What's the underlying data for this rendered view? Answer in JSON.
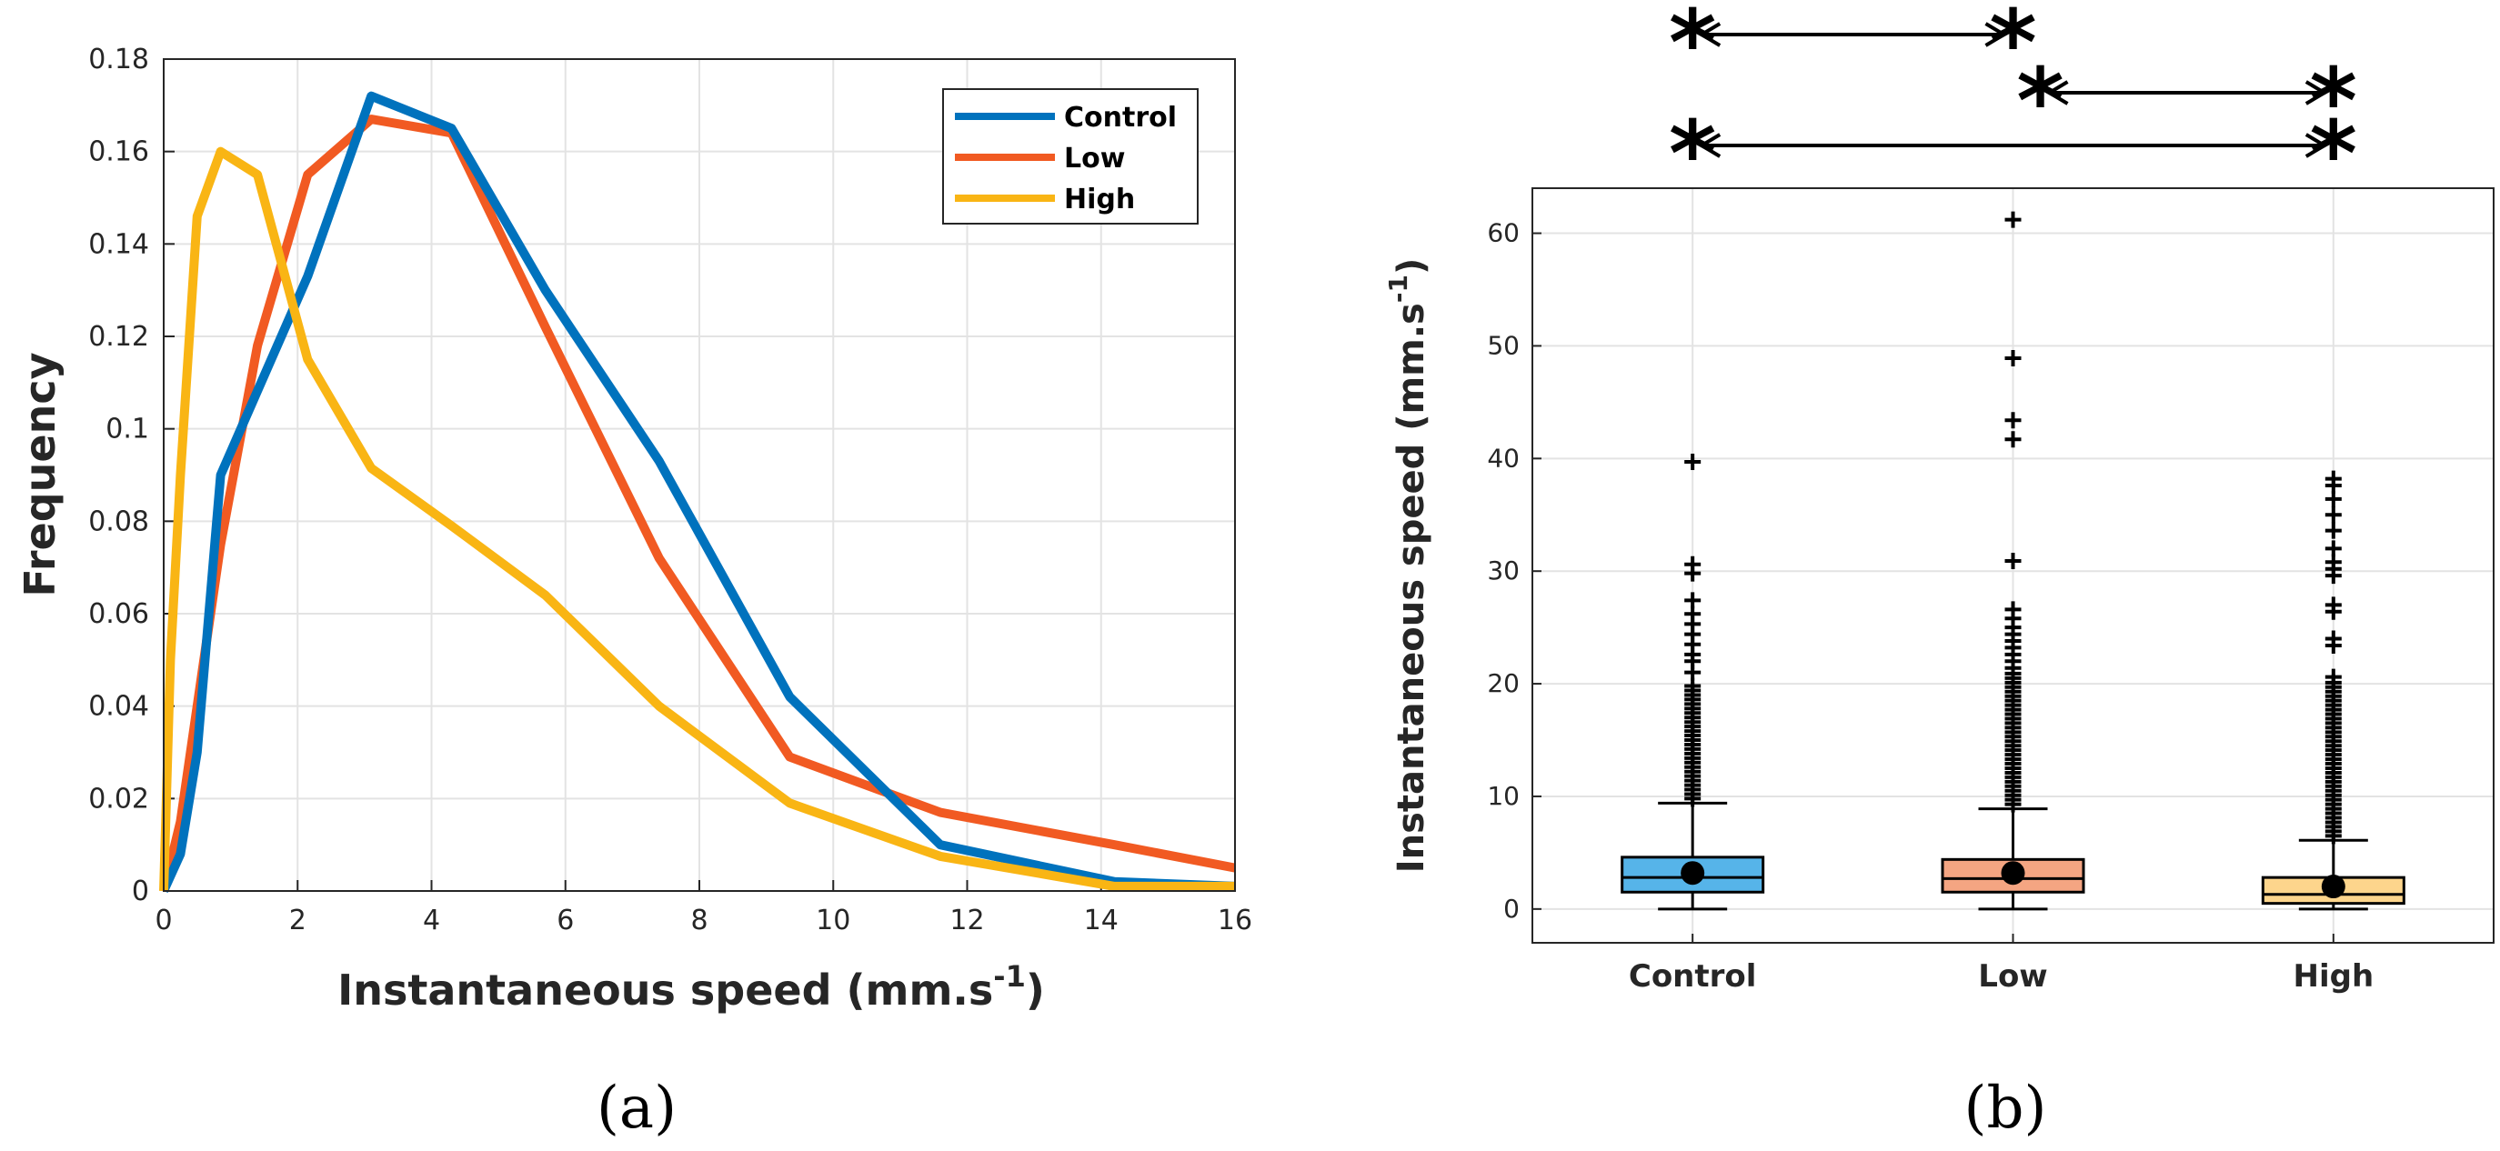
{
  "chart_data": [
    {
      "type": "line",
      "panel": "(a)",
      "xlabel": "Instantaneous speed (mm.s",
      "xlabel_sup": "-1",
      "xlabel_end": ")",
      "ylabel": "Frequency",
      "xlim": [
        0,
        16
      ],
      "ylim": [
        0,
        0.18
      ],
      "grid": true,
      "legend_position": "top-right",
      "x_ticks": [
        0,
        2,
        4,
        6,
        8,
        10,
        12,
        14,
        16
      ],
      "x_tick_labels": [
        "0",
        "2",
        "4",
        "6",
        "8",
        "10",
        "12",
        "14",
        "16"
      ],
      "y_ticks": [
        0,
        0.02,
        0.04,
        0.06,
        0.08,
        0.1,
        0.12,
        0.14,
        0.16,
        0.18
      ],
      "y_tick_labels": [
        "0",
        "0.02",
        "0.04",
        "0.06",
        "0.08",
        "0.1",
        "0.12",
        "0.14",
        "0.16",
        "0.18"
      ],
      "series": [
        {
          "name": "Control",
          "color": "#0072BD",
          "x": [
            0,
            0.25,
            0.5,
            0.85,
            2.15,
            3.1,
            4.3,
            5.7,
            7.4,
            9.35,
            11.6,
            14.2,
            16
          ],
          "y": [
            0,
            0.008,
            0.03,
            0.09,
            0.133,
            0.172,
            0.165,
            0.13,
            0.093,
            0.042,
            0.01,
            0.002,
            0.001
          ]
        },
        {
          "name": "Low",
          "color": "#F15A22",
          "x": [
            0,
            0.25,
            0.5,
            0.85,
            1.4,
            2.15,
            3.1,
            4.3,
            5.7,
            7.4,
            9.35,
            11.6,
            14.2,
            16
          ],
          "y": [
            0,
            0.015,
            0.04,
            0.075,
            0.118,
            0.155,
            0.167,
            0.164,
            0.122,
            0.072,
            0.029,
            0.017,
            0.01,
            0.005
          ]
        },
        {
          "name": "High",
          "color": "#F9B514",
          "x": [
            0,
            0.1,
            0.25,
            0.5,
            0.85,
            1.4,
            2.15,
            3.1,
            4.3,
            5.7,
            7.4,
            9.35,
            11.6,
            14.2,
            16
          ],
          "y": [
            0,
            0.05,
            0.09,
            0.146,
            0.16,
            0.155,
            0.115,
            0.0915,
            0.079,
            0.064,
            0.04,
            0.019,
            0.0075,
            0.001,
            0.001
          ]
        }
      ]
    },
    {
      "type": "boxplot",
      "panel": "(b)",
      "ylabel": "Instantaneous speed (mm.s",
      "ylabel_sup": "-1",
      "ylabel_end": ")",
      "ylim": [
        -3,
        64
      ],
      "grid": true,
      "categories": [
        "Control",
        "Low",
        "High"
      ],
      "y_ticks": [
        0,
        10,
        20,
        30,
        40,
        50,
        60
      ],
      "y_tick_labels": [
        "0",
        "10",
        "20",
        "30",
        "40",
        "50",
        "60"
      ],
      "mean_label": "●",
      "outlier_label": "+",
      "boxes": [
        {
          "name": "Control",
          "color": "#56B4E9",
          "whisker_low": 0,
          "q1": 1.5,
          "median": 2.8,
          "q3": 4.6,
          "whisker_high": 9.4,
          "mean": 3.2,
          "outliers": [
            9.8,
            10.2,
            10.6,
            11,
            11.4,
            11.8,
            12.2,
            12.6,
            13,
            13.4,
            13.8,
            14.2,
            14.6,
            15,
            15.4,
            15.8,
            16.2,
            16.6,
            17,
            17.4,
            17.8,
            18.2,
            18.6,
            19,
            19.4,
            19.8,
            21,
            22,
            22.6,
            23.5,
            24.4,
            25.3,
            26.2,
            27.4,
            29.8,
            30.6,
            39.7
          ]
        },
        {
          "name": "Low",
          "color": "#F4A582",
          "whisker_low": 0,
          "q1": 1.5,
          "median": 2.7,
          "q3": 4.4,
          "whisker_high": 8.9,
          "mean": 3.2,
          "outliers": [
            9.3,
            9.7,
            10.1,
            10.5,
            10.9,
            11.3,
            11.7,
            12.1,
            12.5,
            12.9,
            13.3,
            13.7,
            14.1,
            14.5,
            14.9,
            15.3,
            15.7,
            16.1,
            16.5,
            16.9,
            17.3,
            17.7,
            18.1,
            18.5,
            18.9,
            19.3,
            19.7,
            20.1,
            20.5,
            20.9,
            21.4,
            22,
            22.6,
            23.2,
            23.8,
            24.4,
            25,
            25.8,
            26.6,
            30.9,
            41.7,
            43.4,
            48.9,
            61.2
          ]
        },
        {
          "name": "High",
          "color": "#FDD58C",
          "whisker_low": 0,
          "q1": 0.5,
          "median": 1.3,
          "q3": 2.8,
          "whisker_high": 6.1,
          "mean": 2.0,
          "outliers": [
            6.5,
            6.9,
            7.3,
            7.7,
            8.1,
            8.5,
            8.9,
            9.3,
            9.7,
            10.1,
            10.5,
            10.9,
            11.3,
            11.7,
            12.1,
            12.5,
            12.9,
            13.3,
            13.7,
            14.1,
            14.5,
            14.9,
            15.3,
            15.7,
            16.1,
            16.5,
            16.9,
            17.3,
            17.7,
            18.1,
            18.5,
            18.9,
            19.3,
            19.7,
            20.1,
            20.6,
            23.4,
            24,
            26.4,
            27,
            29.6,
            30.2,
            30.8,
            32,
            33.6,
            35,
            36.4,
            37.6,
            38.2
          ]
        }
      ],
      "significance": [
        {
          "from": "Control",
          "to": "Low",
          "marker": "*"
        },
        {
          "from": "Low",
          "to": "High",
          "marker": "*"
        },
        {
          "from": "Control",
          "to": "High",
          "marker": "*"
        }
      ]
    }
  ]
}
